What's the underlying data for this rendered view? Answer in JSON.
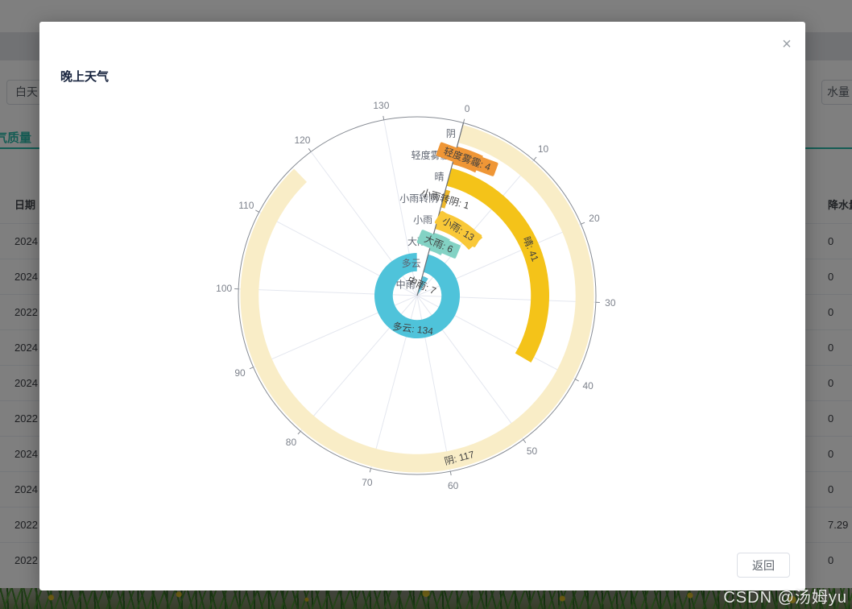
{
  "modal": {
    "title": "晚上天气",
    "close_icon": "×",
    "back_button": "返回"
  },
  "background": {
    "day_tab_fragment": "白天",
    "right_input_fragment": "水量",
    "air_quality_tab": "气质量",
    "table": {
      "date_header": "日期",
      "precip_header": "降水量",
      "dates": [
        "2024",
        "2024",
        "2022",
        "2024",
        "2024",
        "2022",
        "2024",
        "2024",
        "2022",
        "2022"
      ],
      "precip": [
        "0",
        "0",
        "0",
        "0",
        "0",
        "0",
        "0",
        "0",
        "7.29",
        "0"
      ]
    }
  },
  "watermark": "CSDN @汤姆yu",
  "chart_data": {
    "type": "polar-bar",
    "title": "晚上天气",
    "angle_axis": {
      "min": 0,
      "max": 140,
      "interval": 10,
      "start_offset_deg": 15,
      "clockwise": true,
      "tick_labels": [
        "0",
        "10",
        "20",
        "30",
        "40",
        "50",
        "60",
        "70",
        "80",
        "90",
        "100",
        "110",
        "120",
        "130"
      ]
    },
    "categories": [
      "中雨",
      "多云",
      "大雨",
      "小雨",
      "小雨转阴",
      "晴",
      "轻度雾霾",
      "阴"
    ],
    "values": [
      7,
      134,
      6,
      13,
      1,
      41,
      4,
      117
    ],
    "colors": [
      "#59c0d8",
      "#4fc3da",
      "#83d2c4",
      "#f9c838",
      "#edb72c",
      "#f4c319",
      "#ef9636",
      "#f9edc7"
    ],
    "label_has_bg": [
      false,
      false,
      true,
      true,
      false,
      false,
      true,
      false
    ],
    "label_separator": ": ",
    "grid": true,
    "legend": "none"
  }
}
